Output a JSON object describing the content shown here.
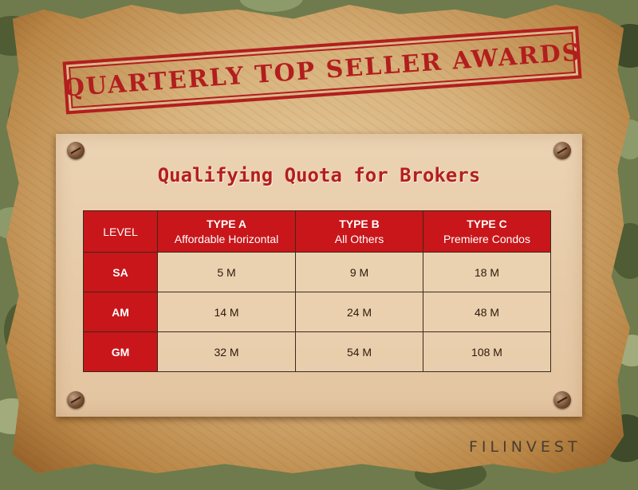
{
  "header": {
    "title": "QUARTERLY TOP SELLER AWARDS"
  },
  "board": {
    "subtitle": "Qualifying Quota for Brokers",
    "table": {
      "level_header": "LEVEL",
      "columns": [
        {
          "type": "TYPE A",
          "desc": "Affordable Horizontal"
        },
        {
          "type": "TYPE B",
          "desc": "All Others"
        },
        {
          "type": "TYPE C",
          "desc": "Premiere Condos"
        }
      ],
      "rows": [
        {
          "level": "SA",
          "values": [
            "5 M",
            "9 M",
            "18 M"
          ]
        },
        {
          "level": "AM",
          "values": [
            "14 M",
            "24 M",
            "48 M"
          ]
        },
        {
          "level": "GM",
          "values": [
            "32 M",
            "54 M",
            "108 M"
          ]
        }
      ]
    }
  },
  "footer": {
    "brand": "FILINVEST"
  },
  "colors": {
    "accent_red": "#c8161a",
    "paper": "#d7b17a",
    "camo": "#6f7b4c"
  }
}
